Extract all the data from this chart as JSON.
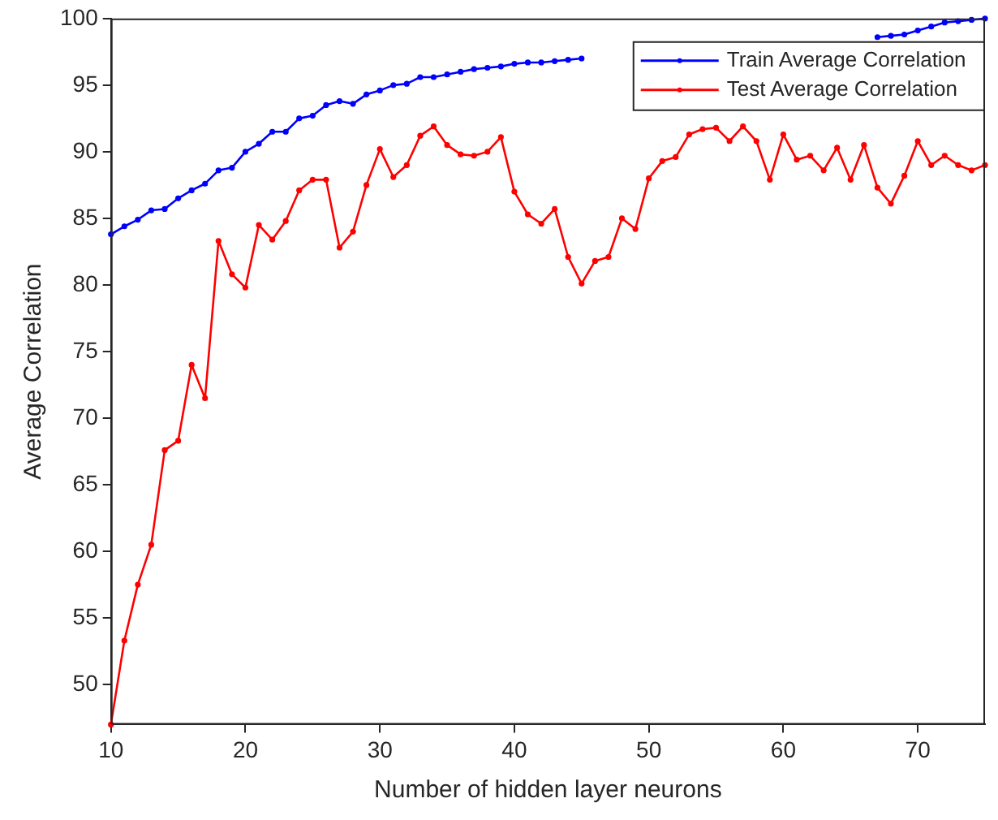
{
  "chart_data": {
    "type": "line",
    "xlabel": "Number of hidden layer neurons",
    "ylabel": "Average Correlation",
    "x": [
      10,
      11,
      12,
      13,
      14,
      15,
      16,
      17,
      18,
      19,
      20,
      21,
      22,
      23,
      24,
      25,
      26,
      27,
      28,
      29,
      30,
      31,
      32,
      33,
      34,
      35,
      36,
      37,
      38,
      39,
      40,
      41,
      42,
      43,
      44,
      45,
      46,
      47,
      48,
      49,
      50,
      51,
      52,
      53,
      54,
      55,
      56,
      57,
      58,
      59,
      60,
      61,
      62,
      63,
      64,
      65,
      66,
      67,
      68,
      69,
      70,
      71,
      72,
      73,
      74,
      75
    ],
    "series": [
      {
        "name": "Train Average Correlation",
        "color": "#0000ff",
        "values": [
          83.8,
          84.4,
          84.9,
          85.6,
          85.7,
          86.5,
          87.1,
          87.6,
          88.6,
          88.8,
          90,
          90.6,
          91.5,
          91.5,
          92.5,
          92.7,
          93.5,
          93.8,
          93.6,
          94.3,
          94.6,
          95,
          95.1,
          95.6,
          95.6,
          95.8,
          96,
          96.2,
          96.3,
          96.4,
          96.6,
          96.7,
          96.7,
          96.8,
          96.9,
          97,
          null,
          null,
          null,
          null,
          null,
          null,
          null,
          null,
          null,
          null,
          null,
          null,
          null,
          null,
          null,
          null,
          null,
          null,
          null,
          null,
          null,
          98.6,
          98.7,
          98.8,
          99.1,
          99.4,
          99.7,
          99.8,
          99.9,
          100
        ]
      },
      {
        "name": "Test Average Correlation",
        "color": "#ff0000",
        "values": [
          47,
          53.3,
          57.5,
          60.5,
          67.6,
          68.3,
          74,
          71.5,
          83.3,
          80.8,
          79.8,
          84.5,
          83.4,
          84.8,
          87.1,
          87.9,
          87.9,
          82.8,
          84,
          87.5,
          90.2,
          88.1,
          89,
          91.2,
          91.9,
          90.5,
          89.8,
          89.7,
          90,
          91.1,
          87,
          85.3,
          84.6,
          85.7,
          82.1,
          80.1,
          81.8,
          82.1,
          85,
          84.2,
          88,
          89.3,
          89.6,
          91.3,
          91.7,
          91.8,
          90.8,
          91.9,
          90.8,
          87.9,
          91.3,
          89.4,
          89.7,
          88.6,
          90.3,
          87.9,
          90.5,
          87.3,
          86.1,
          88.2,
          90.8,
          89,
          89.7,
          89,
          88.6,
          89
        ]
      }
    ],
    "xlim": [
      10,
      75
    ],
    "xticks": [
      10,
      20,
      30,
      40,
      50,
      60,
      70
    ],
    "ylim": [
      47,
      100
    ],
    "yticks": [
      50,
      55,
      60,
      65,
      70,
      75,
      80,
      85,
      90,
      95,
      100
    ],
    "grid": false,
    "legend": "top right",
    "marker": "circle",
    "line_style": "solid"
  }
}
